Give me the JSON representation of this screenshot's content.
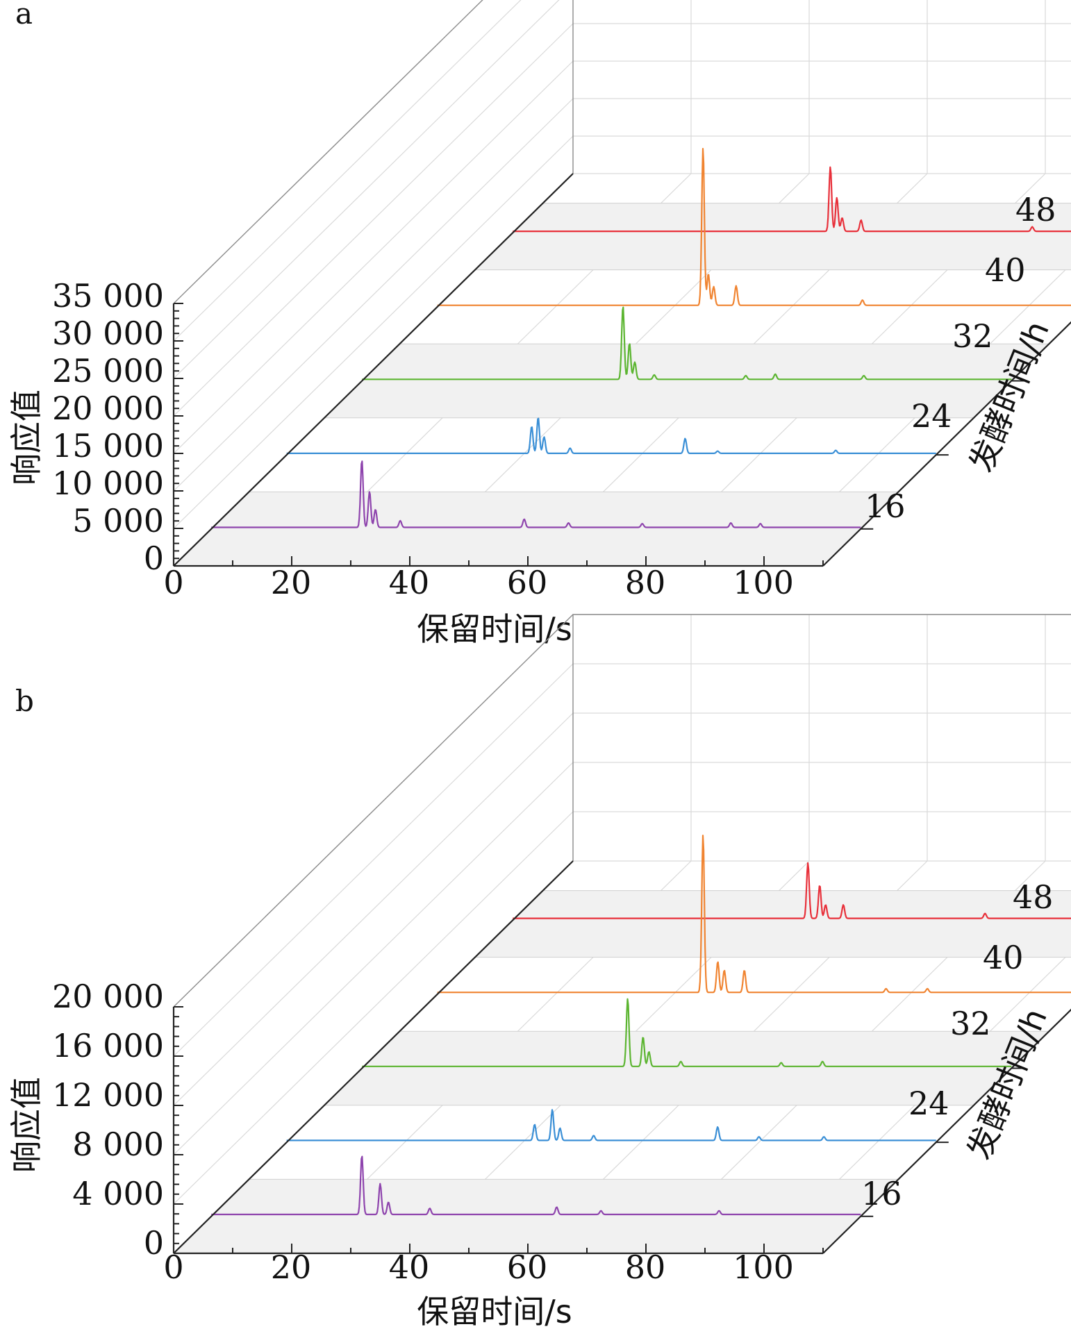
{
  "chart_data": [
    {
      "type": "line",
      "panel_label": "a",
      "xlabel": "保留时间/s",
      "ylabel": "响应值",
      "zlabel": "发酵时间/h",
      "xlim": [
        0,
        110
      ],
      "ylim": [
        0,
        35000
      ],
      "x_ticks": [
        "0",
        "20",
        "40",
        "60",
        "80",
        "100"
      ],
      "y_ticks": [
        "0",
        "5 000",
        "10 000",
        "15 000",
        "20 000",
        "25 000",
        "30 000",
        "35 000"
      ],
      "z_ticks": [
        "16",
        "24",
        "32",
        "40",
        "48"
      ],
      "series": [
        {
          "name": "16",
          "color": "#8e44ad",
          "baseline": 200,
          "peaks": [
            [
              25.5,
              9000
            ],
            [
              26.8,
              4800
            ],
            [
              27.8,
              2400
            ],
            [
              32,
              900
            ],
            [
              53,
              1100
            ],
            [
              60.5,
              600
            ],
            [
              73,
              500
            ],
            [
              88,
              600
            ],
            [
              93,
              500
            ]
          ]
        },
        {
          "name": "24",
          "color": "#3a8fd6",
          "baseline": 200,
          "peaks": [
            [
              41.5,
              3600
            ],
            [
              42.6,
              4800
            ],
            [
              43.6,
              2200
            ],
            [
              48,
              700
            ],
            [
              67.5,
              2000
            ],
            [
              73,
              300
            ],
            [
              93,
              400
            ]
          ]
        },
        {
          "name": "32",
          "color": "#5cb531",
          "baseline": 200,
          "peaks": [
            [
              44.2,
              9800
            ],
            [
              45.3,
              4800
            ],
            [
              46.2,
              2300
            ],
            [
              49.5,
              600
            ],
            [
              65,
              500
            ],
            [
              70,
              700
            ],
            [
              85,
              500
            ]
          ]
        },
        {
          "name": "40",
          "color": "#f08431",
          "baseline": 200,
          "peaks": [
            [
              45,
              21000
            ],
            [
              45.9,
              4200
            ],
            [
              46.8,
              2500
            ],
            [
              50.6,
              2600
            ],
            [
              72,
              700
            ]
          ]
        },
        {
          "name": "48",
          "color": "#e8303a",
          "baseline": 200,
          "peaks": [
            [
              53.8,
              8600
            ],
            [
              54.9,
              4500
            ],
            [
              55.8,
              1800
            ],
            [
              59,
              1500
            ],
            [
              88,
              600
            ]
          ]
        }
      ]
    },
    {
      "type": "line",
      "panel_label": "b",
      "xlabel": "保留时间/s",
      "ylabel": "响应值",
      "zlabel": "发酵时间/h",
      "xlim": [
        0,
        110
      ],
      "ylim": [
        0,
        20000
      ],
      "x_ticks": [
        "0",
        "20",
        "40",
        "60",
        "80",
        "100"
      ],
      "y_ticks": [
        "0",
        "4 000",
        "8 000",
        "12 000",
        "16 000",
        "20 000"
      ],
      "z_ticks": [
        "16",
        "24",
        "32",
        "40",
        "48"
      ],
      "series": [
        {
          "name": "16",
          "color": "#8e44ad",
          "baseline": 150,
          "peaks": [
            [
              25.5,
              4800
            ],
            [
              28.6,
              2500
            ],
            [
              30,
              1000
            ],
            [
              37,
              500
            ],
            [
              58.5,
              600
            ],
            [
              66,
              300
            ],
            [
              86,
              300
            ]
          ]
        },
        {
          "name": "24",
          "color": "#3a8fd6",
          "baseline": 150,
          "peaks": [
            [
              42,
              1300
            ],
            [
              45,
              2500
            ],
            [
              46.3,
              1000
            ],
            [
              52,
              400
            ],
            [
              73,
              1100
            ],
            [
              80,
              300
            ],
            [
              91,
              300
            ]
          ]
        },
        {
          "name": "32",
          "color": "#5cb531",
          "baseline": 150,
          "peaks": [
            [
              45,
              5500
            ],
            [
              47.6,
              2400
            ],
            [
              48.6,
              1200
            ],
            [
              54,
              400
            ],
            [
              71,
              300
            ],
            [
              78,
              400
            ]
          ]
        },
        {
          "name": "40",
          "color": "#f08431",
          "baseline": 150,
          "peaks": [
            [
              45,
              12800
            ],
            [
              47.5,
              2500
            ],
            [
              48.6,
              1800
            ],
            [
              52,
              1800
            ],
            [
              76,
              300
            ],
            [
              83,
              300
            ]
          ]
        },
        {
          "name": "48",
          "color": "#e8303a",
          "baseline": 150,
          "peaks": [
            [
              50,
              4500
            ],
            [
              52,
              2700
            ],
            [
              53,
              1100
            ],
            [
              56,
              1100
            ],
            [
              80,
              400
            ]
          ]
        }
      ]
    }
  ]
}
